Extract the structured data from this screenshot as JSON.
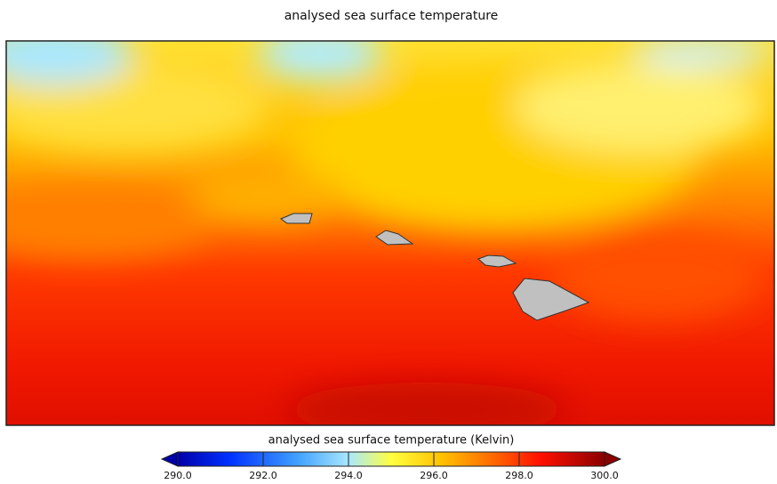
{
  "title": "analysed sea surface temperature",
  "colorbar": {
    "label": "analysed sea surface temperature (Kelvin)",
    "range": [
      290,
      300
    ],
    "ticks": [
      {
        "value": 290,
        "label": "290.0"
      },
      {
        "value": 292,
        "label": "292.0"
      },
      {
        "value": 294,
        "label": "294.0"
      },
      {
        "value": 296,
        "label": "296.0"
      },
      {
        "value": 298,
        "label": "298.0"
      },
      {
        "value": 300,
        "label": "300.0"
      }
    ]
  }
}
